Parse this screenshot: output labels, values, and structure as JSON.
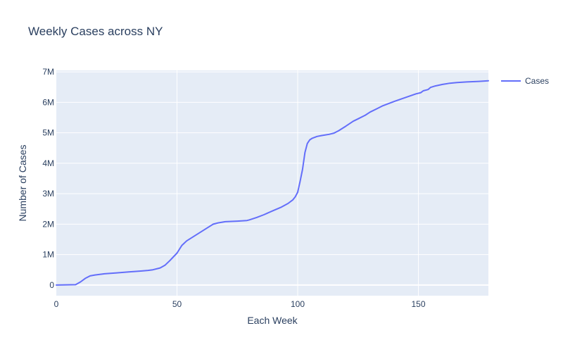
{
  "chart_data": {
    "type": "line",
    "title": "Weekly Cases across NY",
    "xlabel": "Each Week",
    "ylabel": "Number of Cases",
    "xlim": [
      0,
      179
    ],
    "ylim": [
      -350000,
      7050000
    ],
    "x_ticks": [
      {
        "value": 0,
        "label": "0"
      },
      {
        "value": 50,
        "label": "50"
      },
      {
        "value": 100,
        "label": "100"
      },
      {
        "value": 150,
        "label": "150"
      }
    ],
    "y_ticks": [
      {
        "value": 0,
        "label": "0"
      },
      {
        "value": 1000000,
        "label": "1M"
      },
      {
        "value": 2000000,
        "label": "2M"
      },
      {
        "value": 3000000,
        "label": "3M"
      },
      {
        "value": 4000000,
        "label": "4M"
      },
      {
        "value": 5000000,
        "label": "5M"
      },
      {
        "value": 6000000,
        "label": "6M"
      },
      {
        "value": 7000000,
        "label": "7M"
      }
    ],
    "grid": true,
    "legend": {
      "position": "top-right"
    },
    "series": [
      {
        "name": "Cases",
        "color": "#636efa",
        "x": [
          0,
          8,
          10,
          12,
          14,
          16,
          20,
          25,
          30,
          35,
          38,
          40,
          43,
          45,
          47,
          50,
          52,
          54,
          57,
          60,
          63,
          65,
          67,
          70,
          75,
          79,
          80,
          83,
          86,
          90,
          93,
          96,
          98,
          99,
          100,
          101,
          102,
          103,
          104,
          105,
          106,
          108,
          110,
          113,
          115,
          117,
          120,
          123,
          125,
          128,
          130,
          133,
          135,
          140,
          145,
          149,
          151,
          152,
          154,
          155,
          157,
          160,
          163,
          166,
          170,
          175,
          179
        ],
        "y": [
          0,
          10000,
          100000,
          220000,
          300000,
          330000,
          370000,
          400000,
          430000,
          460000,
          480000,
          500000,
          560000,
          650000,
          800000,
          1050000,
          1300000,
          1450000,
          1600000,
          1750000,
          1900000,
          2000000,
          2040000,
          2080000,
          2100000,
          2120000,
          2140000,
          2220000,
          2310000,
          2450000,
          2550000,
          2680000,
          2800000,
          2900000,
          3050000,
          3400000,
          3800000,
          4350000,
          4650000,
          4770000,
          4820000,
          4880000,
          4910000,
          4950000,
          4990000,
          5070000,
          5220000,
          5380000,
          5460000,
          5580000,
          5680000,
          5800000,
          5880000,
          6030000,
          6170000,
          6280000,
          6320000,
          6380000,
          6420000,
          6490000,
          6540000,
          6590000,
          6630000,
          6650000,
          6670000,
          6690000,
          6710000
        ]
      }
    ]
  }
}
